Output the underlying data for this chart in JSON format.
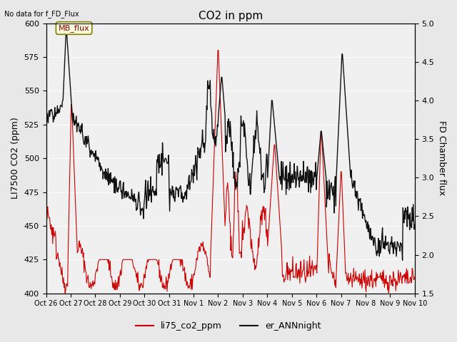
{
  "title": "CO2 in ppm",
  "ylabel_left": "LI7500 CO2 (ppm)",
  "ylabel_right": "FD Chamber flux",
  "note": "No data for f_FD_Flux",
  "legend_label1": "li75_co2_ppm",
  "legend_label2": "er_ANNnight",
  "mb_flux_label": "MB_flux",
  "ylim_left": [
    400,
    600
  ],
  "ylim_right": [
    1.5,
    5.0
  ],
  "line1_color": "#cc0000",
  "line2_color": "#111111",
  "bg_color": "#e8e8e8",
  "plot_bg": "#f0f0f0",
  "xtick_labels": [
    "Oct 26",
    "Oct 27",
    "Oct 28",
    "Oct 29",
    "Oct 30",
    "Oct 31",
    "Nov 1",
    "Nov 2",
    "Nov 3",
    "Nov 4",
    "Nov 5",
    "Nov 6",
    "Nov 7",
    "Nov 8",
    "Nov 9",
    "Nov 10"
  ],
  "num_days": 15,
  "seed": 42
}
